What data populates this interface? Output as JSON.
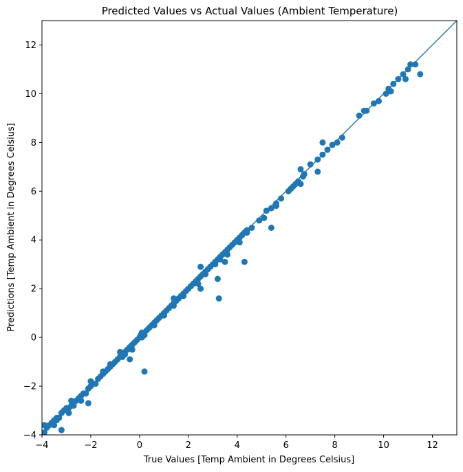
{
  "chart_data": {
    "type": "scatter",
    "title": "Predicted Values vs Actual Values (Ambient Temperature)",
    "xlabel": "True Values [Temp Ambient in Degrees Celsius]",
    "ylabel": "Predictions [Temp Ambient in Degrees Celsius]",
    "xlim": [
      -4,
      13
    ],
    "ylim": [
      -4,
      13
    ],
    "xticks": [
      -4,
      -2,
      0,
      2,
      4,
      6,
      8,
      10,
      12
    ],
    "yticks": [
      -4,
      -2,
      0,
      2,
      4,
      6,
      8,
      10,
      12
    ],
    "xtick_labels": [
      "−4",
      "−2",
      "0",
      "2",
      "4",
      "6",
      "8",
      "10",
      "12"
    ],
    "ytick_labels": [
      "−4",
      "−2",
      "0",
      "2",
      "4",
      "6",
      "8",
      "10",
      "12"
    ],
    "grid": false,
    "color": "#1f77b4",
    "reference_line": {
      "x": [
        -4,
        13
      ],
      "y": [
        -4,
        13
      ]
    },
    "series": [
      {
        "x": [
          -4.0,
          -3.9,
          -3.8,
          -3.7,
          -3.6,
          -3.5,
          -3.5,
          -3.4,
          -3.3,
          -3.2,
          -3.1,
          -3.0,
          -2.9,
          -2.8,
          -2.7,
          -2.6,
          -2.5,
          -2.4,
          -2.3,
          -2.2,
          -2.1,
          -2.0,
          -1.9,
          -1.8,
          -1.7,
          -1.6,
          -1.5,
          -1.4,
          -1.3,
          -1.2,
          -1.1,
          -1.0,
          -0.9,
          -0.8,
          -0.7,
          -0.6,
          -0.5,
          -0.4,
          -0.3,
          -0.2,
          -0.1,
          0.0,
          0.05,
          0.1,
          0.15,
          0.2,
          0.3,
          0.4,
          0.5,
          0.6,
          0.7,
          0.8,
          0.9,
          1.0,
          1.1,
          1.2,
          1.3,
          1.4,
          1.5,
          1.6,
          1.7,
          1.8,
          1.9,
          2.0,
          2.1,
          2.2,
          2.3,
          2.4,
          2.5,
          2.6,
          2.7,
          2.8,
          2.9,
          3.0,
          3.1,
          3.2,
          3.3,
          3.4,
          3.5,
          3.6,
          3.7,
          3.8,
          3.9,
          4.0,
          4.1,
          4.2,
          4.3,
          4.4,
          4.6,
          4.9,
          5.2,
          5.4,
          5.6,
          5.8,
          6.1,
          6.2,
          6.3,
          6.4,
          6.5,
          6.7,
          7.0,
          7.3,
          7.5,
          7.7,
          7.9,
          8.1,
          8.3,
          9.0,
          9.3,
          9.6,
          9.8,
          10.1,
          10.2,
          10.4,
          10.6,
          10.8,
          11.0,
          11.1,
          11.3,
          11.5,
          -3.9,
          -3.2,
          -3.4,
          -2.7,
          -2.9,
          -2.4,
          -2.0,
          -1.5,
          -1.2,
          -0.6,
          -0.3,
          0.1,
          0.2,
          0.6,
          1.0,
          1.4,
          1.8,
          2.4,
          2.7,
          3.1,
          3.3,
          3.6,
          4.1,
          4.4,
          5.1,
          5.6,
          6.6,
          7.3,
          9.2,
          10.3,
          10.9,
          0.2,
          1.3,
          3.25,
          2.5,
          3.5,
          4.3,
          5.4,
          6.6,
          6.75,
          7.5,
          3.2,
          2.5,
          1.4,
          -0.4,
          -0.8,
          -2.1,
          -2.8
        ],
        "y": [
          -4.0,
          -3.9,
          -3.7,
          -3.6,
          -3.5,
          -3.4,
          -3.6,
          -3.3,
          -3.3,
          -3.1,
          -3.0,
          -2.9,
          -2.9,
          -2.8,
          -2.7,
          -2.6,
          -2.5,
          -2.4,
          -2.3,
          -2.3,
          -2.1,
          -2.0,
          -1.9,
          -1.9,
          -1.7,
          -1.6,
          -1.5,
          -1.4,
          -1.3,
          -1.2,
          -1.1,
          -1.0,
          -0.9,
          -0.8,
          -0.8,
          -0.6,
          -0.5,
          -0.4,
          -0.3,
          -0.2,
          -0.1,
          0.0,
          0.1,
          0.2,
          0.1,
          0.2,
          0.3,
          0.4,
          0.5,
          0.6,
          0.7,
          0.8,
          0.9,
          1.0,
          1.1,
          1.2,
          1.3,
          1.4,
          1.5,
          1.6,
          1.7,
          1.8,
          1.9,
          2.0,
          2.1,
          2.2,
          2.3,
          2.4,
          2.5,
          2.6,
          2.7,
          2.8,
          2.9,
          3.0,
          3.1,
          3.2,
          3.3,
          3.4,
          3.5,
          3.6,
          3.7,
          3.8,
          3.9,
          4.0,
          4.1,
          4.2,
          4.3,
          4.4,
          4.5,
          4.8,
          5.2,
          5.3,
          5.5,
          5.7,
          6.0,
          6.1,
          6.2,
          6.3,
          6.4,
          6.6,
          7.1,
          7.3,
          7.5,
          7.7,
          7.9,
          8.0,
          8.2,
          9.1,
          9.3,
          9.6,
          9.7,
          10.0,
          10.2,
          10.4,
          10.6,
          10.8,
          11.0,
          11.2,
          11.2,
          10.8,
          -3.6,
          -3.8,
          -3.4,
          -2.8,
          -3.1,
          -2.6,
          -1.8,
          -1.4,
          -1.1,
          -0.7,
          -0.5,
          0.0,
          0.1,
          0.5,
          0.9,
          1.3,
          1.7,
          2.2,
          2.6,
          3.0,
          3.2,
          3.4,
          3.9,
          4.3,
          4.9,
          5.4,
          6.3,
          6.8,
          9.3,
          10.1,
          10.6,
          -1.4,
          1.3,
          1.6,
          2.9,
          3.1,
          3.1,
          4.5,
          6.9,
          6.7,
          8.0,
          2.4,
          2.0,
          1.6,
          -0.9,
          -0.6,
          -2.7,
          -2.6
        ]
      }
    ]
  }
}
